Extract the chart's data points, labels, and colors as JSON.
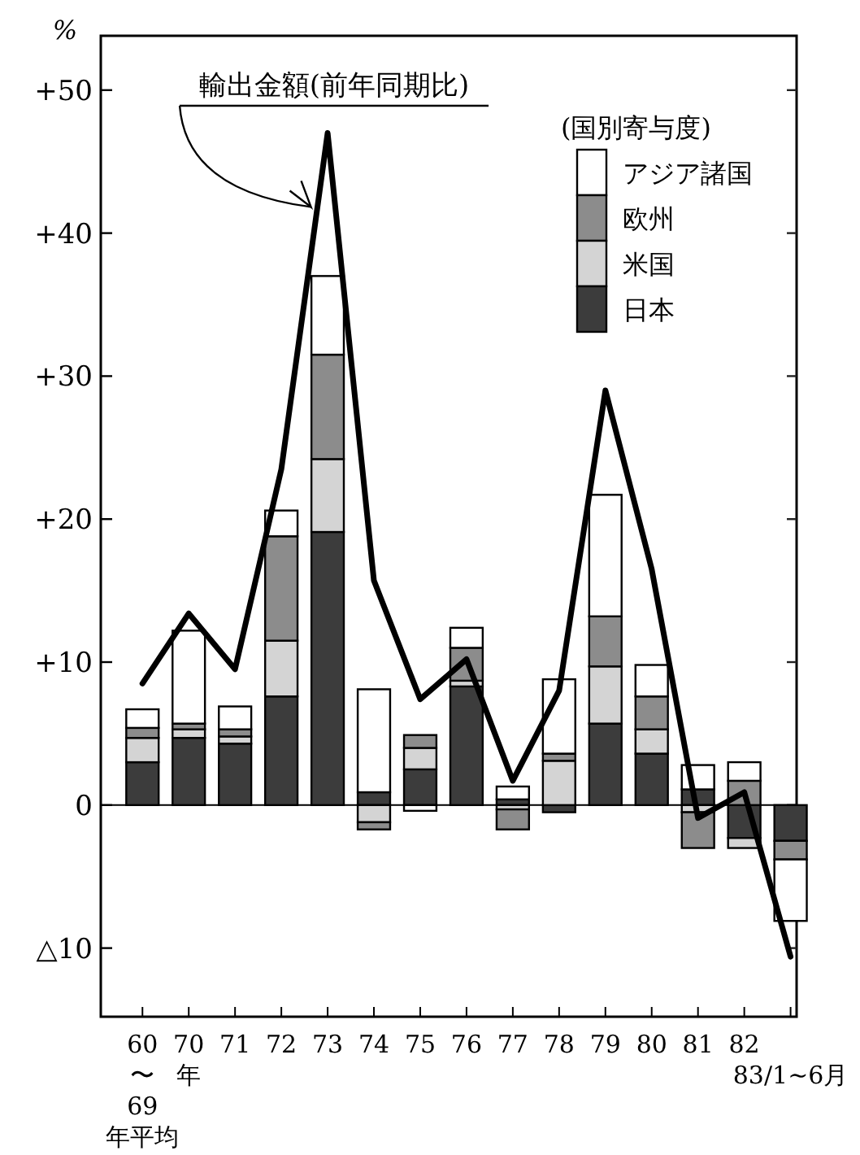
{
  "chart_data": {
    "type": "bar",
    "stacked": true,
    "ylabel": "%",
    "xlabel": "年",
    "legend_title": "(国別寄与度)",
    "legend": "top right",
    "categories": [
      "60\n〜\n69\n年平均",
      "70",
      "71",
      "72",
      "73",
      "74",
      "75",
      "76",
      "77",
      "78",
      "79",
      "80",
      "81",
      "82",
      "83/1~6月"
    ],
    "ylim": [
      -14.8,
      53.8
    ],
    "yticks": [
      {
        "value": -10,
        "label": "△10"
      },
      0,
      {
        "value": 10,
        "label": "+10"
      },
      {
        "value": 20,
        "label": "+20"
      },
      {
        "value": 30,
        "label": "+30"
      },
      {
        "value": 40,
        "label": "+40"
      },
      {
        "value": 50,
        "label": "+50"
      }
    ],
    "series": [
      {
        "name": "日本",
        "color": "#3c3c3c",
        "values": [
          3.0,
          4.7,
          4.3,
          7.6,
          19.1,
          0.9,
          2.5,
          8.3,
          0.4,
          -0.5,
          5.7,
          3.6,
          1.1,
          -2.3,
          -2.5
        ]
      },
      {
        "name": "米国",
        "color": "#d4d4d4",
        "values": [
          1.7,
          0.6,
          0.5,
          3.9,
          5.1,
          -1.2,
          1.5,
          0.4,
          -0.3,
          3.1,
          4.0,
          1.7,
          -0.5,
          -0.7,
          0
        ]
      },
      {
        "name": "欧州",
        "color": "#8c8c8c",
        "values": [
          0.7,
          0.4,
          0.5,
          7.3,
          7.3,
          -0.5,
          0.9,
          2.3,
          -1.4,
          0.5,
          3.5,
          2.3,
          -2.5,
          1.7,
          -1.3
        ]
      },
      {
        "name": "アジア諸国",
        "color": "#ffffff",
        "values": [
          1.3,
          6.5,
          1.6,
          1.8,
          5.5,
          7.2,
          -0.4,
          1.4,
          0.9,
          5.2,
          8.5,
          2.2,
          1.7,
          1.3,
          -4.3
        ]
      },
      {
        "name": "輸出金額(前年同期比)",
        "type": "line",
        "color": "#000000",
        "values": [
          8.5,
          13.4,
          9.5,
          23.5,
          47.0,
          15.7,
          7.4,
          10.2,
          1.7,
          8.0,
          29.0,
          16.5,
          -0.9,
          0.9,
          -10.6
        ]
      }
    ]
  }
}
